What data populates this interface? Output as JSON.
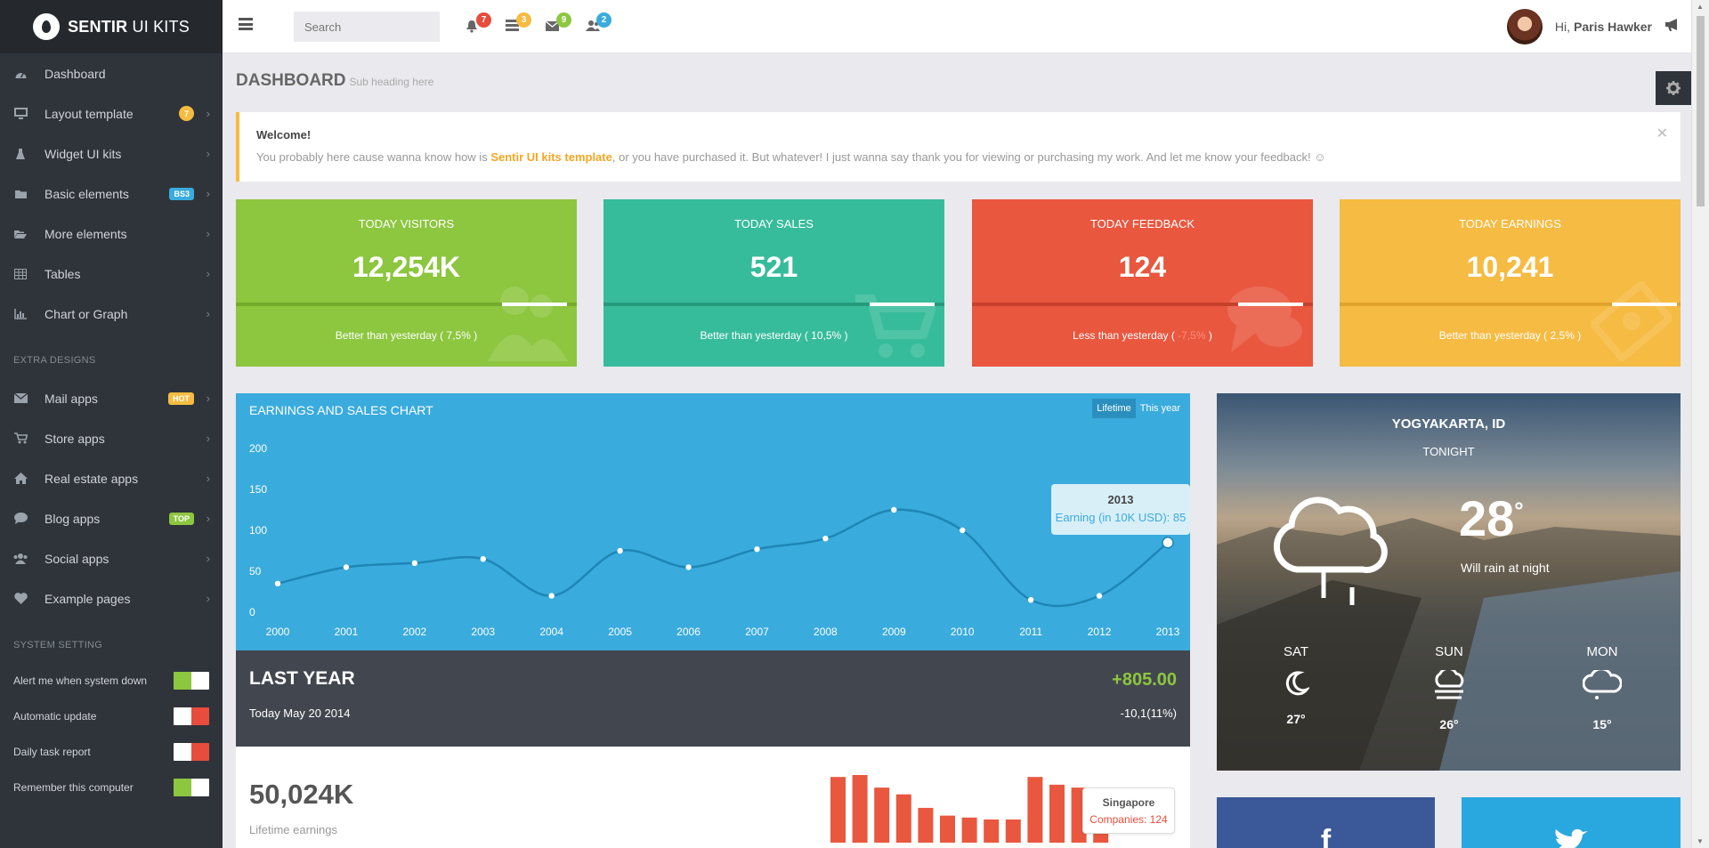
{
  "brand": {
    "name_bold": "SENTIR",
    "name_rest": " UI KITS"
  },
  "sidebar": {
    "items": [
      {
        "label": "Dashboard",
        "icon": "dashboard-icon",
        "badge": "",
        "chevron": false
      },
      {
        "label": "Layout template",
        "icon": "monitor-icon",
        "badge": "7",
        "badge_color": "#f5bc41",
        "chevron": true
      },
      {
        "label": "Widget UI kits",
        "icon": "flask-icon",
        "badge": "",
        "chevron": true
      },
      {
        "label": "Basic elements",
        "icon": "folder-icon",
        "badge": "BS3",
        "badge_color": "#3aabdd",
        "chevron": true
      },
      {
        "label": "More elements",
        "icon": "folder-open-icon",
        "badge": "",
        "chevron": true
      },
      {
        "label": "Tables",
        "icon": "table-icon",
        "badge": "",
        "chevron": true
      },
      {
        "label": "Chart or Graph",
        "icon": "bar-chart-icon",
        "badge": "",
        "chevron": true
      }
    ],
    "extra_title": "EXTRA DESIGNS",
    "extra_items": [
      {
        "label": "Mail apps",
        "icon": "envelope-icon",
        "badge": "HOT",
        "badge_color": "#f5bc41"
      },
      {
        "label": "Store apps",
        "icon": "cart-icon",
        "badge": ""
      },
      {
        "label": "Real estate apps",
        "icon": "home-icon",
        "badge": ""
      },
      {
        "label": "Blog apps",
        "icon": "comment-icon",
        "badge": "TOP",
        "badge_color": "#8dc63f"
      },
      {
        "label": "Social apps",
        "icon": "users-icon",
        "badge": ""
      },
      {
        "label": "Example pages",
        "icon": "heart-icon",
        "badge": ""
      }
    ],
    "system_title": "SYSTEM SETTING",
    "settings": [
      {
        "label": "Alert me when system down",
        "on": true
      },
      {
        "label": "Automatic update",
        "on": false
      },
      {
        "label": "Daily task report",
        "on": false
      },
      {
        "label": "Remember this computer",
        "on": true
      }
    ]
  },
  "topbar": {
    "search_placeholder": "Search",
    "notifications": [
      {
        "icon": "bell-icon",
        "count": "7",
        "color": "#e74c3c"
      },
      {
        "icon": "tasks-icon",
        "count": "3",
        "color": "#f5bc41"
      },
      {
        "icon": "envelope-icon",
        "count": "9",
        "color": "#8dc63f"
      },
      {
        "icon": "users-icon",
        "count": "2",
        "color": "#3aabdd"
      }
    ],
    "greeting": "Hi,",
    "user_name": "Paris Hawker"
  },
  "page": {
    "title": "DASHBOARD",
    "subtitle": "Sub heading here"
  },
  "welcome": {
    "title": "Welcome!",
    "text_before": "You probably here cause wanna know how is ",
    "link": "Sentir UI kits template",
    "text_after": ", or you have purchased it. But whatever! I just wanna say thank you for viewing or purchasing my work. And let me know your feedback! ☺"
  },
  "stats": [
    {
      "title": "TODAY VISITORS",
      "value": "12,254K",
      "note_before": "Better than yesterday ( ",
      "note_highlight": "7,5%",
      "note_after": " )",
      "color": "#8dc63f",
      "bar_color": "#74ac2b",
      "progress": 0.78
    },
    {
      "title": "TODAY SALES",
      "value": "521",
      "note_before": "Better than yesterday ( ",
      "note_highlight": "10,5%",
      "note_after": " )",
      "color": "#37bc9b",
      "bar_color": "#259b7e",
      "progress": 0.78
    },
    {
      "title": "TODAY FEEDBACK",
      "value": "124",
      "note_before": "Less than yesterday ( ",
      "note_highlight": "-7,5%",
      "note_after": " )",
      "color": "#e9573f",
      "bar_color": "#c8402a",
      "progress": 0.78,
      "highlight_color": "#ff8c7a"
    },
    {
      "title": "TODAY EARNINGS",
      "value": "10,241",
      "note_before": "Better than yesterday ( ",
      "note_highlight": "2,5%",
      "note_after": " )",
      "color": "#f6bb42",
      "bar_color": "#e0a32c",
      "progress": 0.8
    }
  ],
  "chart_data": {
    "type": "line",
    "title": "EARNINGS AND SALES CHART",
    "tabs": [
      "Lifetime",
      "This year"
    ],
    "active_tab": "Lifetime",
    "x": [
      "2000",
      "2001",
      "2002",
      "2003",
      "2004",
      "2005",
      "2006",
      "2007",
      "2008",
      "2009",
      "2010",
      "2011",
      "2012",
      "2013"
    ],
    "y_ticks": [
      "200",
      "150",
      "100",
      "50",
      "0"
    ],
    "ylim": [
      0,
      200
    ],
    "series": [
      {
        "values": [
          35,
          55,
          60,
          65,
          20,
          75,
          55,
          77,
          90,
          125,
          100,
          15,
          20,
          85
        ]
      }
    ],
    "tooltip": {
      "title": "2013",
      "label": "Earning (in 10K USD): 85"
    }
  },
  "last_year": {
    "title": "LAST YEAR",
    "date": "Today May 20 2014",
    "amount": "+805.00",
    "change": "-10,1(11%)"
  },
  "lifetime": {
    "value": "50,024K",
    "label": "Lifetime earnings",
    "bars": [
      68,
      70,
      57,
      50,
      36,
      28,
      26,
      24,
      24,
      68,
      60,
      57,
      45
    ],
    "tooltip": {
      "title": "Singapore",
      "label": "Companies: 124"
    }
  },
  "weather": {
    "city": "YOGYAKARTA, ID",
    "when": "TONIGHT",
    "temp": "28",
    "desc": "Will rain at night",
    "forecast": [
      {
        "day": "SAT",
        "temp": "27",
        "icon": "moon-icon"
      },
      {
        "day": "SUN",
        "temp": "26",
        "icon": "cloud-fog-icon"
      },
      {
        "day": "MON",
        "temp": "15",
        "icon": "cloud-snow-icon"
      }
    ]
  },
  "social": {
    "facebook": "f"
  },
  "colors": {
    "sidebar": "#2f343a",
    "accent": "#3aabdd",
    "green": "#8dc63f",
    "red": "#e74c3c",
    "yellow": "#f5bc41"
  }
}
